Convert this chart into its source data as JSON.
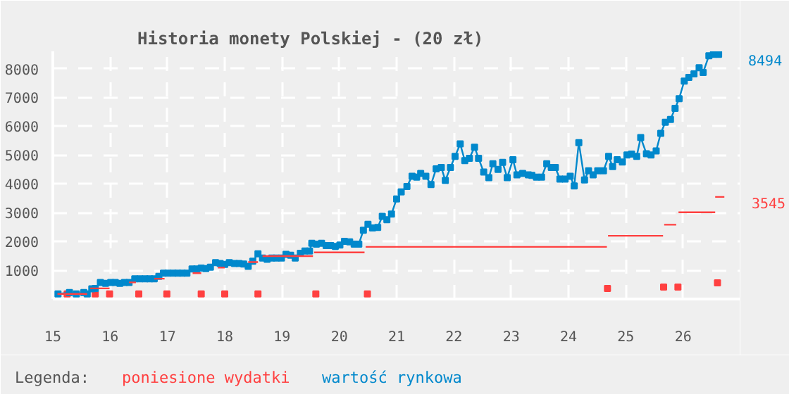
{
  "chart_data": {
    "type": "line",
    "title": "Historia monety Polskiej - (20 zł)",
    "legend_title": "Legenda:",
    "legend": "bottom",
    "grid": true,
    "xlim": [
      15,
      27
    ],
    "xticks": [
      15,
      16,
      17,
      18,
      19,
      20,
      21,
      22,
      23,
      24,
      25,
      26
    ],
    "ylim": [
      0,
      8600
    ],
    "yticks": [
      1000,
      2000,
      3000,
      4000,
      5000,
      6000,
      7000,
      8000
    ],
    "series": [
      {
        "name": "poniesione wydatki",
        "type": "line",
        "marker": "none",
        "color": "#ff4040",
        "x": [
          15.08,
          15.6,
          null,
          15.65,
          15.99,
          null,
          16.33,
          16.45,
          null,
          16.77,
          16.95,
          null,
          17.44,
          17.59,
          null,
          17.88,
          18.0,
          null,
          18.41,
          18.58,
          null,
          18.66,
          19.54,
          null,
          19.56,
          20.44,
          null,
          20.46,
          24.67,
          null,
          24.69,
          25.65,
          null,
          25.67,
          25.88,
          null,
          25.92,
          26.56,
          null,
          26.56,
          26.72
        ],
        "values": [
          176,
          176,
          null,
          369,
          369,
          null,
          577,
          577,
          null,
          705,
          705,
          null,
          897,
          897,
          null,
          1090,
          1090,
          null,
          1282,
          1282,
          null,
          1490,
          1490,
          null,
          1619,
          1619,
          null,
          1811,
          1811,
          null,
          2196,
          2196,
          null,
          2580,
          2580,
          null,
          3013,
          3013,
          null,
          3545,
          3545
        ]
      },
      {
        "name": "wartość rynkowa",
        "marker": "square",
        "color": "#0088cc",
        "x": [
          15.09,
          15.29,
          15.41,
          15.54,
          15.6,
          15.68,
          15.74,
          15.83,
          15.92,
          16.01,
          16.09,
          16.17,
          16.25,
          16.33,
          16.43,
          16.52,
          16.61,
          16.69,
          16.77,
          16.85,
          16.93,
          17.01,
          17.1,
          17.18,
          17.26,
          17.34,
          17.43,
          17.51,
          17.59,
          17.67,
          17.75,
          17.84,
          17.92,
          18.0,
          18.08,
          18.17,
          18.25,
          18.33,
          18.41,
          18.49,
          18.58,
          18.66,
          18.74,
          18.82,
          18.9,
          18.99,
          19.07,
          19.15,
          19.23,
          19.32,
          19.4,
          19.48,
          19.52,
          19.6,
          19.69,
          19.77,
          19.85,
          19.93,
          20.01,
          20.09,
          20.18,
          20.26,
          20.34,
          20.42,
          20.5,
          20.58,
          20.67,
          20.75,
          20.83,
          20.91,
          21.0,
          21.08,
          21.18,
          21.27,
          21.35,
          21.42,
          21.51,
          21.6,
          21.69,
          21.78,
          21.85,
          21.94,
          22.02,
          22.11,
          22.19,
          22.27,
          22.36,
          22.43,
          22.52,
          22.61,
          22.68,
          22.77,
          22.85,
          22.93,
          23.03,
          23.1,
          23.2,
          23.3,
          23.36,
          23.44,
          23.53,
          23.62,
          23.7,
          23.77,
          23.85,
          23.94,
          24.03,
          24.1,
          24.18,
          24.28,
          24.35,
          24.43,
          24.51,
          24.61,
          24.7,
          24.77,
          24.85,
          24.94,
          25.02,
          25.1,
          25.19,
          25.26,
          25.36,
          25.44,
          25.53,
          25.61,
          25.69,
          25.78,
          25.86,
          25.93,
          26.02,
          26.1,
          26.19,
          26.28,
          26.35,
          26.45,
          26.53,
          26.62
        ],
        "values": [
          176,
          224,
          176,
          224,
          176,
          353,
          369,
          577,
          545,
          577,
          577,
          545,
          577,
          577,
          705,
          705,
          705,
          705,
          705,
          785,
          897,
          897,
          897,
          897,
          897,
          897,
          1042,
          1042,
          1074,
          1058,
          1106,
          1266,
          1234,
          1202,
          1266,
          1234,
          1234,
          1218,
          1138,
          1314,
          1571,
          1426,
          1378,
          1426,
          1426,
          1426,
          1554,
          1523,
          1426,
          1587,
          1667,
          1667,
          1939,
          1907,
          1939,
          1859,
          1859,
          1827,
          1875,
          2003,
          1987,
          1907,
          1907,
          2388,
          2596,
          2468,
          2484,
          2869,
          2757,
          2949,
          3478,
          3718,
          3911,
          4263,
          4231,
          4359,
          4263,
          3975,
          4520,
          4568,
          4119,
          4568,
          4952,
          5385,
          4808,
          4888,
          5273,
          4888,
          4407,
          4215,
          4696,
          4504,
          4744,
          4215,
          4840,
          4311,
          4359,
          4311,
          4295,
          4231,
          4231,
          4696,
          4568,
          4568,
          4167,
          4167,
          4263,
          3927,
          5433,
          4135,
          4455,
          4311,
          4455,
          4455,
          4952,
          4600,
          4840,
          4760,
          5000,
          5032,
          4952,
          5609,
          5048,
          5000,
          5145,
          5754,
          6138,
          6234,
          6619,
          6956,
          7565,
          7693,
          7821,
          8029,
          7869,
          8446,
          8494,
          8494
        ]
      },
      {
        "type": "scatter",
        "marker": "square",
        "color": "#ff4040",
        "x": [
          15.25,
          15.74,
          15.99,
          16.5,
          16.99,
          17.59,
          18.0,
          18.58,
          19.59,
          20.49,
          24.68,
          25.66,
          25.91,
          26.6
        ],
        "values": [
          176,
          176,
          176,
          176,
          176,
          176,
          176,
          176,
          176,
          176,
          369,
          417,
          417,
          561
        ]
      }
    ],
    "annotations": [
      {
        "text": "8494",
        "x": 26.62,
        "y": 8494
      },
      {
        "text": "3545",
        "x": 26.68,
        "y": 3545
      }
    ]
  }
}
